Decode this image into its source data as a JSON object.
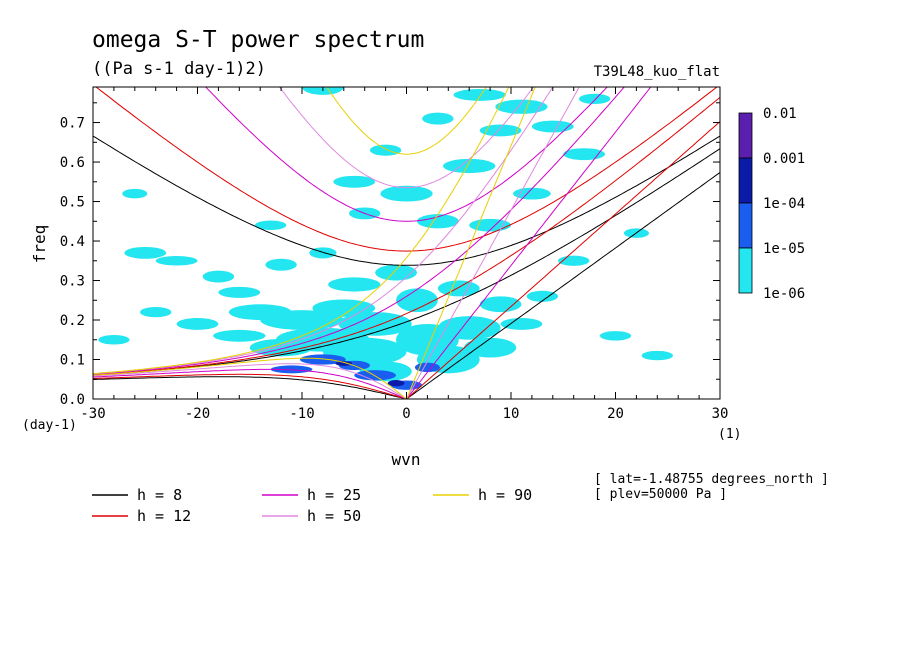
{
  "chart_data": {
    "type": "heatmap",
    "title": "omega S-T power spectrum",
    "units": "((Pa s-1 day-1)2)",
    "run_label": "T39L48_kuo_flat",
    "xlabel": "wvn",
    "ylabel": "freq",
    "x_unit_label": "(1)",
    "y_unit_label": "(day-1)",
    "xlim": [
      -30,
      30
    ],
    "ylim": [
      0.0,
      0.79
    ],
    "x_ticks": [
      -30,
      -20,
      -10,
      0,
      10,
      20,
      30
    ],
    "y_ticks": [
      0.0,
      0.1,
      0.2,
      0.3,
      0.4,
      0.5,
      0.6,
      0.7
    ],
    "x_tick_labels": [
      "-30",
      "-20",
      "-10",
      "0",
      "10",
      "20",
      "30"
    ],
    "y_tick_labels": [
      "0.0",
      "0.1",
      "0.2",
      "0.3",
      "0.4",
      "0.5",
      "0.6",
      "0.7"
    ],
    "colorbar": {
      "labels": [
        "0.01",
        "0.001",
        "1e-04",
        "1e-05",
        "1e-06"
      ],
      "colors": [
        "#5b1fb0",
        "#0b1aa8",
        "#1a5ef0",
        "#23e6f0"
      ]
    },
    "levels": [
      "1e-06",
      "1e-05",
      "1e-04",
      "0.001"
    ],
    "blobs": [
      {
        "x": -25,
        "y": 0.37,
        "w": 2,
        "h": 0.015,
        "level": 0
      },
      {
        "x": -22,
        "y": 0.35,
        "w": 2,
        "h": 0.012,
        "level": 0
      },
      {
        "x": -18,
        "y": 0.31,
        "w": 1.5,
        "h": 0.015,
        "level": 0
      },
      {
        "x": -16,
        "y": 0.27,
        "w": 2,
        "h": 0.014,
        "level": 0
      },
      {
        "x": -12,
        "y": 0.34,
        "w": 1.5,
        "h": 0.015,
        "level": 0
      },
      {
        "x": -8,
        "y": 0.37,
        "w": 1.3,
        "h": 0.014,
        "level": 0
      },
      {
        "x": -5,
        "y": 0.29,
        "w": 2.5,
        "h": 0.018,
        "level": 0
      },
      {
        "x": -14,
        "y": 0.22,
        "w": 3,
        "h": 0.02,
        "level": 0
      },
      {
        "x": -10,
        "y": 0.2,
        "w": 4,
        "h": 0.025,
        "level": 0
      },
      {
        "x": -6,
        "y": 0.23,
        "w": 3,
        "h": 0.022,
        "level": 0
      },
      {
        "x": -3,
        "y": 0.19,
        "w": 3.5,
        "h": 0.03,
        "level": 0
      },
      {
        "x": -8,
        "y": 0.15,
        "w": 4.5,
        "h": 0.03,
        "level": 0
      },
      {
        "x": -4,
        "y": 0.12,
        "w": 4,
        "h": 0.035,
        "level": 0
      },
      {
        "x": -12,
        "y": 0.13,
        "w": 3,
        "h": 0.022,
        "level": 0
      },
      {
        "x": -16,
        "y": 0.16,
        "w": 2.5,
        "h": 0.015,
        "level": 0
      },
      {
        "x": -20,
        "y": 0.19,
        "w": 2,
        "h": 0.015,
        "level": 0
      },
      {
        "x": -24,
        "y": 0.22,
        "w": 1.5,
        "h": 0.013,
        "level": 0
      },
      {
        "x": -28,
        "y": 0.15,
        "w": 1.5,
        "h": 0.012,
        "level": 0
      },
      {
        "x": -2,
        "y": 0.07,
        "w": 2.5,
        "h": 0.025,
        "level": 0
      },
      {
        "x": -1,
        "y": 0.32,
        "w": 2,
        "h": 0.02,
        "level": 0
      },
      {
        "x": 1,
        "y": 0.25,
        "w": 2,
        "h": 0.03,
        "level": 0
      },
      {
        "x": 2,
        "y": 0.15,
        "w": 3,
        "h": 0.04,
        "level": 0
      },
      {
        "x": 4,
        "y": 0.1,
        "w": 3,
        "h": 0.035,
        "level": 0
      },
      {
        "x": 6,
        "y": 0.18,
        "w": 3,
        "h": 0.03,
        "level": 0
      },
      {
        "x": 8,
        "y": 0.13,
        "w": 2.5,
        "h": 0.025,
        "level": 0
      },
      {
        "x": 5,
        "y": 0.28,
        "w": 2,
        "h": 0.02,
        "level": 0
      },
      {
        "x": 9,
        "y": 0.24,
        "w": 2,
        "h": 0.02,
        "level": 0
      },
      {
        "x": 11,
        "y": 0.19,
        "w": 2,
        "h": 0.015,
        "level": 0
      },
      {
        "x": 13,
        "y": 0.26,
        "w": 1.5,
        "h": 0.014,
        "level": 0
      },
      {
        "x": 16,
        "y": 0.35,
        "w": 1.5,
        "h": 0.013,
        "level": 0
      },
      {
        "x": 20,
        "y": 0.16,
        "w": 1.5,
        "h": 0.012,
        "level": 0
      },
      {
        "x": 24,
        "y": 0.11,
        "w": 1.5,
        "h": 0.012,
        "level": 0
      },
      {
        "x": 3,
        "y": 0.45,
        "w": 2,
        "h": 0.018,
        "level": 0
      },
      {
        "x": 0,
        "y": 0.52,
        "w": 2.5,
        "h": 0.02,
        "level": 0
      },
      {
        "x": -4,
        "y": 0.47,
        "w": 1.5,
        "h": 0.015,
        "level": 0
      },
      {
        "x": 6,
        "y": 0.59,
        "w": 2.5,
        "h": 0.018,
        "level": 0
      },
      {
        "x": 9,
        "y": 0.68,
        "w": 2,
        "h": 0.015,
        "level": 0
      },
      {
        "x": 11,
        "y": 0.74,
        "w": 2.5,
        "h": 0.018,
        "level": 0
      },
      {
        "x": 7,
        "y": 0.77,
        "w": 2.5,
        "h": 0.015,
        "level": 0
      },
      {
        "x": 14,
        "y": 0.69,
        "w": 2,
        "h": 0.015,
        "level": 0
      },
      {
        "x": 17,
        "y": 0.62,
        "w": 2,
        "h": 0.015,
        "level": 0
      },
      {
        "x": 18,
        "y": 0.76,
        "w": 1.5,
        "h": 0.013,
        "level": 0
      },
      {
        "x": 3,
        "y": 0.71,
        "w": 1.5,
        "h": 0.015,
        "level": 0
      },
      {
        "x": -8,
        "y": 0.79,
        "w": 2,
        "h": 0.02,
        "level": 0
      },
      {
        "x": -5,
        "y": 0.55,
        "w": 2,
        "h": 0.015,
        "level": 0
      },
      {
        "x": -2,
        "y": 0.63,
        "w": 1.5,
        "h": 0.014,
        "level": 0
      },
      {
        "x": 8,
        "y": 0.44,
        "w": 2,
        "h": 0.016,
        "level": 0
      },
      {
        "x": 12,
        "y": 0.52,
        "w": 1.8,
        "h": 0.015,
        "level": 0
      },
      {
        "x": -26,
        "y": 0.52,
        "w": 1.2,
        "h": 0.012,
        "level": 0
      },
      {
        "x": -13,
        "y": 0.44,
        "w": 1.5,
        "h": 0.012,
        "level": 0
      },
      {
        "x": 22,
        "y": 0.42,
        "w": 1.2,
        "h": 0.012,
        "level": 0
      },
      {
        "x": -8,
        "y": 0.1,
        "w": 2.2,
        "h": 0.013,
        "level": 1
      },
      {
        "x": -5,
        "y": 0.085,
        "w": 1.5,
        "h": 0.012,
        "level": 1
      },
      {
        "x": -3,
        "y": 0.06,
        "w": 2,
        "h": 0.013,
        "level": 1
      },
      {
        "x": -11,
        "y": 0.075,
        "w": 2,
        "h": 0.01,
        "level": 1
      },
      {
        "x": 0,
        "y": 0.035,
        "w": 1.5,
        "h": 0.012,
        "level": 1
      },
      {
        "x": 2,
        "y": 0.08,
        "w": 1.2,
        "h": 0.012,
        "level": 1
      },
      {
        "x": -1,
        "y": 0.04,
        "w": 0.8,
        "h": 0.008,
        "level": 2
      },
      {
        "x": -6,
        "y": 0.09,
        "w": 0.8,
        "h": 0.006,
        "level": 2
      }
    ],
    "dispersion_curves": [
      {
        "name": "h =  8",
        "h": 8,
        "color": "#000000"
      },
      {
        "name": "h = 12",
        "h": 12,
        "color": "#e00000"
      },
      {
        "name": "h = 25",
        "h": 25,
        "color": "#d000c8"
      },
      {
        "name": "h = 50",
        "h": 50,
        "color": "#e088e0"
      },
      {
        "name": "h = 90",
        "h": 90,
        "color": "#e8d000"
      }
    ],
    "info": [
      "[ lat=-1.48755 degrees_north ]",
      "[ plev=50000 Pa ]"
    ],
    "grid": false
  }
}
